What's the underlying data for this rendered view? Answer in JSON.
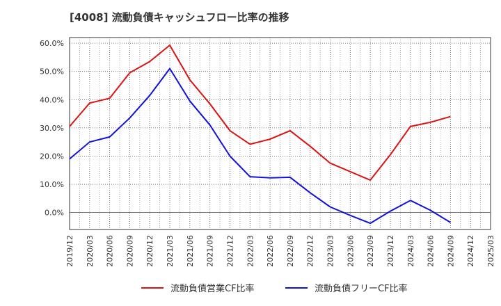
{
  "chart_data": {
    "type": "line",
    "title": "[4008]  流動負債キャッシュフロー比率の推移",
    "xlabel": "",
    "ylabel": "",
    "ylim": [
      -6,
      62
    ],
    "y_ticks": [
      "60.0%",
      "50.0%",
      "40.0%",
      "30.0%",
      "20.0%",
      "10.0%",
      "0.0%"
    ],
    "y_tick_values": [
      60,
      50,
      40,
      30,
      20,
      10,
      0
    ],
    "x_ticks": [
      "2019/12",
      "2020/03",
      "2020/06",
      "2020/09",
      "2020/12",
      "2021/03",
      "2021/06",
      "2021/09",
      "2021/12",
      "2022/03",
      "2022/06",
      "2022/09",
      "2022/12",
      "2023/03",
      "2023/06",
      "2023/09",
      "2023/12",
      "2024/03",
      "2024/06",
      "2024/09",
      "2024/12",
      "2025/03"
    ],
    "grid": true,
    "legend_position": "bottom",
    "series": [
      {
        "name": "流動負債営業CF比率",
        "color": "#dd1111",
        "values": [
          30.5,
          38.8,
          40.5,
          49.5,
          53.5,
          59.3,
          47.0,
          38.5,
          29.0,
          24.2,
          26.0,
          29.0,
          23.5,
          17.5,
          14.5,
          11.5,
          20.5,
          30.5,
          32.0,
          34.0
        ]
      },
      {
        "name": "流動負債フリーCF比率",
        "color": "#1111dd",
        "values": [
          19.0,
          25.0,
          26.8,
          33.5,
          41.5,
          51.0,
          39.5,
          31.0,
          20.0,
          12.7,
          12.3,
          12.5,
          7.0,
          2.0,
          -1.0,
          -3.8,
          0.5,
          4.3,
          0.8,
          -3.5
        ]
      }
    ]
  }
}
